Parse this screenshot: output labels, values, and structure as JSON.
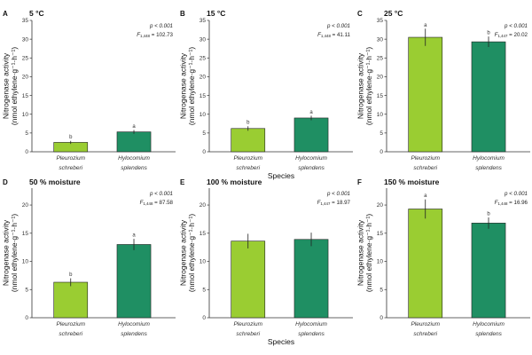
{
  "chart_data": [
    {
      "type": "bar",
      "letter": "A",
      "title": "5 °C",
      "ylabel_line1": "Nitrogenase activity",
      "ylabel_line2": "(nmol ethylene·g⁻¹·h⁻¹)",
      "xlabel": "",
      "ylim": [
        0,
        35
      ],
      "yticks": [
        "0",
        "5",
        "10",
        "15",
        "20",
        "25",
        "30",
        "35"
      ],
      "categories": [
        {
          "line1": "Pleurozium",
          "line2": "schreberi"
        },
        {
          "line1": "Hylocomium",
          "line2": "splendens"
        }
      ],
      "values": [
        2.5,
        5.3
      ],
      "errors": [
        0.4,
        0.5
      ],
      "letters": [
        "b",
        "a"
      ],
      "stat_p": "p < 0.001",
      "stat_f_letter": "F",
      "stat_f_df": "1,448",
      "stat_f_val": " = 102.73",
      "colors": [
        "#9ACD32",
        "#1F8F63"
      ]
    },
    {
      "type": "bar",
      "letter": "B",
      "title": "15 °C",
      "ylabel_line1": "Nitrogenase activity",
      "ylabel_line2": "(nmol ethylene·g⁻¹·h⁻¹)",
      "xlabel": "Species",
      "ylim": [
        0,
        35
      ],
      "yticks": [
        "0",
        "5",
        "10",
        "15",
        "20",
        "25",
        "30",
        "35"
      ],
      "categories": [
        {
          "line1": "Pleurozium",
          "line2": "schreberi"
        },
        {
          "line1": "Hylocomium",
          "line2": "splendens"
        }
      ],
      "values": [
        6.2,
        9.0
      ],
      "errors": [
        0.6,
        0.6
      ],
      "letters": [
        "b",
        "a"
      ],
      "stat_p": "p < 0.001",
      "stat_f_letter": "F",
      "stat_f_df": "1,448",
      "stat_f_val": " = 41.11",
      "colors": [
        "#9ACD32",
        "#1F8F63"
      ]
    },
    {
      "type": "bar",
      "letter": "C",
      "title": "25 °C",
      "ylabel_line1": "Nitrogenase activity",
      "ylabel_line2": "(nmol ethylene·g⁻¹·h⁻¹)",
      "xlabel": "",
      "ylim": [
        0,
        35
      ],
      "yticks": [
        "0",
        "5",
        "10",
        "15",
        "20",
        "25",
        "30",
        "35"
      ],
      "categories": [
        {
          "line1": "Pleurozium",
          "line2": "schreberi"
        },
        {
          "line1": "Hylocomium",
          "line2": "splendens"
        }
      ],
      "values": [
        30.5,
        29.3
      ],
      "errors": [
        2.3,
        1.4
      ],
      "letters": [
        "a",
        "b"
      ],
      "stat_p": "p < 0.001",
      "stat_f_letter": "F",
      "stat_f_df": "1,447",
      "stat_f_val": " = 20.02",
      "colors": [
        "#9ACD32",
        "#1F8F63"
      ]
    },
    {
      "type": "bar",
      "letter": "D",
      "title": "50 % moisture",
      "ylabel_line1": "Nitrogenase activity",
      "ylabel_line2": "(nmol ethylene·g⁻¹·h⁻¹)",
      "xlabel": "",
      "ylim": [
        0,
        23
      ],
      "yticks": [
        "0",
        "5",
        "10",
        "15",
        "20"
      ],
      "categories": [
        {
          "line1": "Pleurozium",
          "line2": "schreberi"
        },
        {
          "line1": "Hylocomium",
          "line2": "splendens"
        }
      ],
      "values": [
        6.3,
        13.0
      ],
      "errors": [
        0.7,
        1.0
      ],
      "letters": [
        "b",
        "a"
      ],
      "stat_p": "p < 0.001",
      "stat_f_letter": "F",
      "stat_f_df": "1,448",
      "stat_f_val": " = 87.58",
      "colors": [
        "#9ACD32",
        "#1F8F63"
      ]
    },
    {
      "type": "bar",
      "letter": "E",
      "title": "100 % moisture",
      "ylabel_line1": "Nitrogenase activity",
      "ylabel_line2": "(nmol ethylene·g⁻¹·h⁻¹)",
      "xlabel": "Species",
      "ylim": [
        0,
        23
      ],
      "yticks": [
        "0",
        "5",
        "10",
        "15",
        "20"
      ],
      "categories": [
        {
          "line1": "Pleurozium",
          "line2": "schreberi"
        },
        {
          "line1": "Hylocomium",
          "line2": "splendens"
        }
      ],
      "values": [
        13.6,
        13.9
      ],
      "errors": [
        1.3,
        1.2
      ],
      "letters": [
        "",
        ""
      ],
      "stat_p": "p < 0.001",
      "stat_f_letter": "F",
      "stat_f_df": "1,447",
      "stat_f_val": " = 18.97",
      "colors": [
        "#9ACD32",
        "#1F8F63"
      ]
    },
    {
      "type": "bar",
      "letter": "F",
      "title": "150 % moisture",
      "ylabel_line1": "Nitrogenase activity",
      "ylabel_line2": "(nmol ethylene·g⁻¹·h⁻¹)",
      "xlabel": "",
      "ylim": [
        0,
        23
      ],
      "yticks": [
        "0",
        "5",
        "10",
        "15",
        "20"
      ],
      "categories": [
        {
          "line1": "Pleurozium",
          "line2": "schreberi"
        },
        {
          "line1": "Hylocomium",
          "line2": "splendens"
        }
      ],
      "values": [
        19.3,
        16.8
      ],
      "errors": [
        1.7,
        1.0
      ],
      "letters": [
        "a",
        "b"
      ],
      "stat_p": "p < 0.001",
      "stat_f_letter": "F",
      "stat_f_df": "1,448",
      "stat_f_val": " = 16.96",
      "colors": [
        "#9ACD32",
        "#1F8F63"
      ]
    }
  ]
}
